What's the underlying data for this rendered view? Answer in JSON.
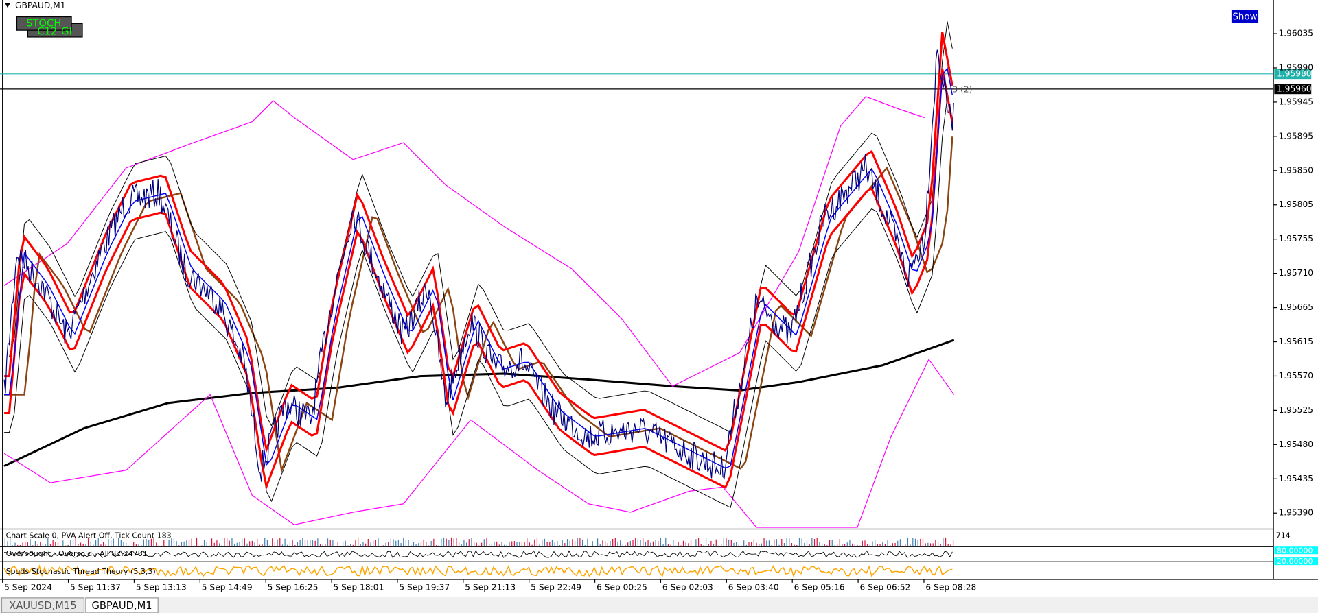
{
  "window": {
    "symbol": "GBPAUD,M1",
    "buttons": [
      "STOCH",
      "C12-GI"
    ],
    "show": "Show",
    "annotation": "3 (2)"
  },
  "price_axis": {
    "labels": [
      "1.96035",
      "1.95990",
      "1.95945",
      "1.95895",
      "1.95850",
      "1.95805",
      "1.95755",
      "1.95710",
      "1.95665",
      "1.95615",
      "1.95570",
      "1.95525",
      "1.95480",
      "1.95435",
      "1.95390"
    ],
    "markers": [
      "1.95980",
      "1.95960"
    ]
  },
  "time_axis": {
    "labels": [
      "5 Sep 2024",
      "5 Sep 11:37",
      "5 Sep 13:13",
      "5 Sep 14:49",
      "5 Sep 16:25",
      "5 Sep 18:01",
      "5 Sep 19:37",
      "5 Sep 21:13",
      "5 Sep 22:49",
      "6 Sep 00:25",
      "6 Sep 02:03",
      "6 Sep 03:40",
      "6 Sep 05:16",
      "6 Sep 06:52",
      "6 Sep 08:28"
    ]
  },
  "indicators": {
    "volume": "Chart Scale 0,  PVA Alert Off,  Tick Count 183",
    "volume_max": "714",
    "obos": "Overbought - Oversold - All 82.24781",
    "levels": [
      "80.00000",
      "20.00000"
    ],
    "stoch": "Spuds Stochastic Thread Theory (5,3,3)"
  },
  "tabs": [
    "XAUUSD,M15",
    "GBPAUD,M1"
  ]
}
